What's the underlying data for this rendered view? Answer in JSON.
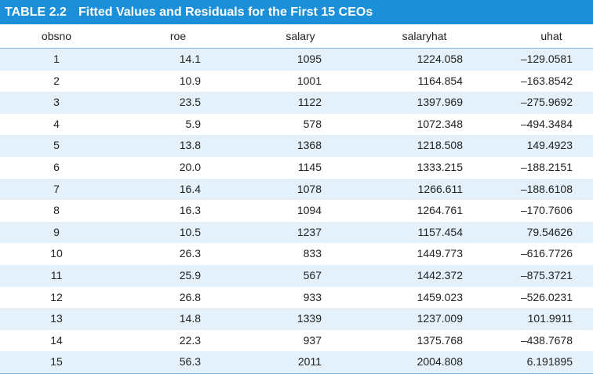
{
  "header": {
    "label": "TABLE 2.2",
    "title": "Fitted Values and Residuals for the First 15 CEOs"
  },
  "table": {
    "columns": [
      "obsno",
      "roe",
      "salary",
      "salaryhat",
      "uhat"
    ],
    "rows": [
      [
        "1",
        "14.1",
        "1095",
        "1224.058",
        "–129.0581"
      ],
      [
        "2",
        "10.9",
        "1001",
        "1164.854",
        "–163.8542"
      ],
      [
        "3",
        "23.5",
        "1122",
        "1397.969",
        "–275.9692"
      ],
      [
        "4",
        "5.9",
        "578",
        "1072.348",
        "–494.3484"
      ],
      [
        "5",
        "13.8",
        "1368",
        "1218.508",
        "149.4923"
      ],
      [
        "6",
        "20.0",
        "1145",
        "1333.215",
        "–188.2151"
      ],
      [
        "7",
        "16.4",
        "1078",
        "1266.611",
        "–188.6108"
      ],
      [
        "8",
        "16.3",
        "1094",
        "1264.761",
        "–170.7606"
      ],
      [
        "9",
        "10.5",
        "1237",
        "1157.454",
        "79.54626"
      ],
      [
        "10",
        "26.3",
        "833",
        "1449.773",
        "–616.7726"
      ],
      [
        "11",
        "25.9",
        "567",
        "1442.372",
        "–875.3721"
      ],
      [
        "12",
        "26.8",
        "933",
        "1459.023",
        "–526.0231"
      ],
      [
        "13",
        "14.8",
        "1339",
        "1237.009",
        "101.9911"
      ],
      [
        "14",
        "22.3",
        "937",
        "1375.768",
        "–438.7678"
      ],
      [
        "15",
        "56.3",
        "2011",
        "2004.808",
        "6.191895"
      ]
    ]
  }
}
